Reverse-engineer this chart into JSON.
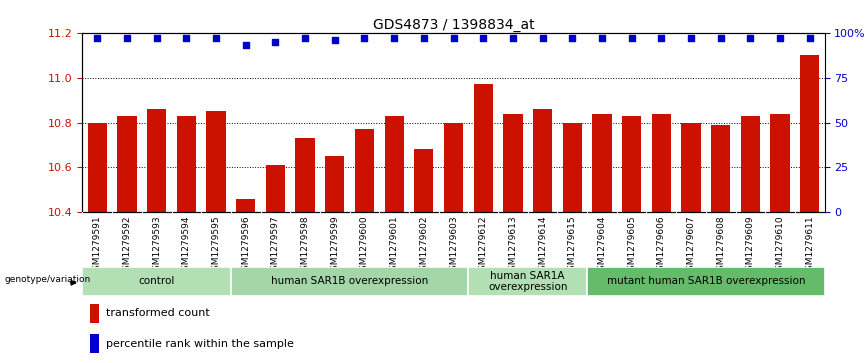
{
  "title": "GDS4873 / 1398834_at",
  "samples": [
    "GSM1279591",
    "GSM1279592",
    "GSM1279593",
    "GSM1279594",
    "GSM1279595",
    "GSM1279596",
    "GSM1279597",
    "GSM1279598",
    "GSM1279599",
    "GSM1279600",
    "GSM1279601",
    "GSM1279602",
    "GSM1279603",
    "GSM1279612",
    "GSM1279613",
    "GSM1279614",
    "GSM1279615",
    "GSM1279604",
    "GSM1279605",
    "GSM1279606",
    "GSM1279607",
    "GSM1279608",
    "GSM1279609",
    "GSM1279610",
    "GSM1279611"
  ],
  "bar_values": [
    10.8,
    10.83,
    10.86,
    10.83,
    10.85,
    10.46,
    10.61,
    10.73,
    10.65,
    10.77,
    10.83,
    10.68,
    10.8,
    10.97,
    10.84,
    10.86,
    10.8,
    10.84,
    10.83,
    10.84,
    10.8,
    10.79,
    10.83,
    10.84,
    11.1
  ],
  "percentile_values": [
    97,
    97,
    97,
    97,
    97,
    93,
    95,
    97,
    96,
    97,
    97,
    97,
    97,
    97,
    97,
    97,
    97,
    97,
    97,
    97,
    97,
    97,
    97,
    97,
    97
  ],
  "groups": [
    {
      "label": "control",
      "start": 0,
      "end": 5,
      "color": "#b2dfb3"
    },
    {
      "label": "human SAR1B overexpression",
      "start": 5,
      "end": 13,
      "color": "#a5d6a7"
    },
    {
      "label": "human SAR1A\noverexpression",
      "start": 13,
      "end": 17,
      "color": "#b2dfb3"
    },
    {
      "label": "mutant human SAR1B overexpression",
      "start": 17,
      "end": 25,
      "color": "#66bb6a"
    }
  ],
  "ylim": [
    10.4,
    11.2
  ],
  "yticks": [
    10.4,
    10.6,
    10.8,
    11.0,
    11.2
  ],
  "bar_color": "#cc1100",
  "dot_color": "#0000cc",
  "right_yticks": [
    0,
    25,
    50,
    75,
    100
  ],
  "right_yticklabels": [
    "0",
    "25",
    "50",
    "75",
    "100%"
  ],
  "background_color": "#ffffff",
  "xlabels_bg": "#c8c8c8",
  "grid_color": "#000000",
  "grid_style": ":",
  "grid_lw": 0.7,
  "bar_width": 0.65
}
